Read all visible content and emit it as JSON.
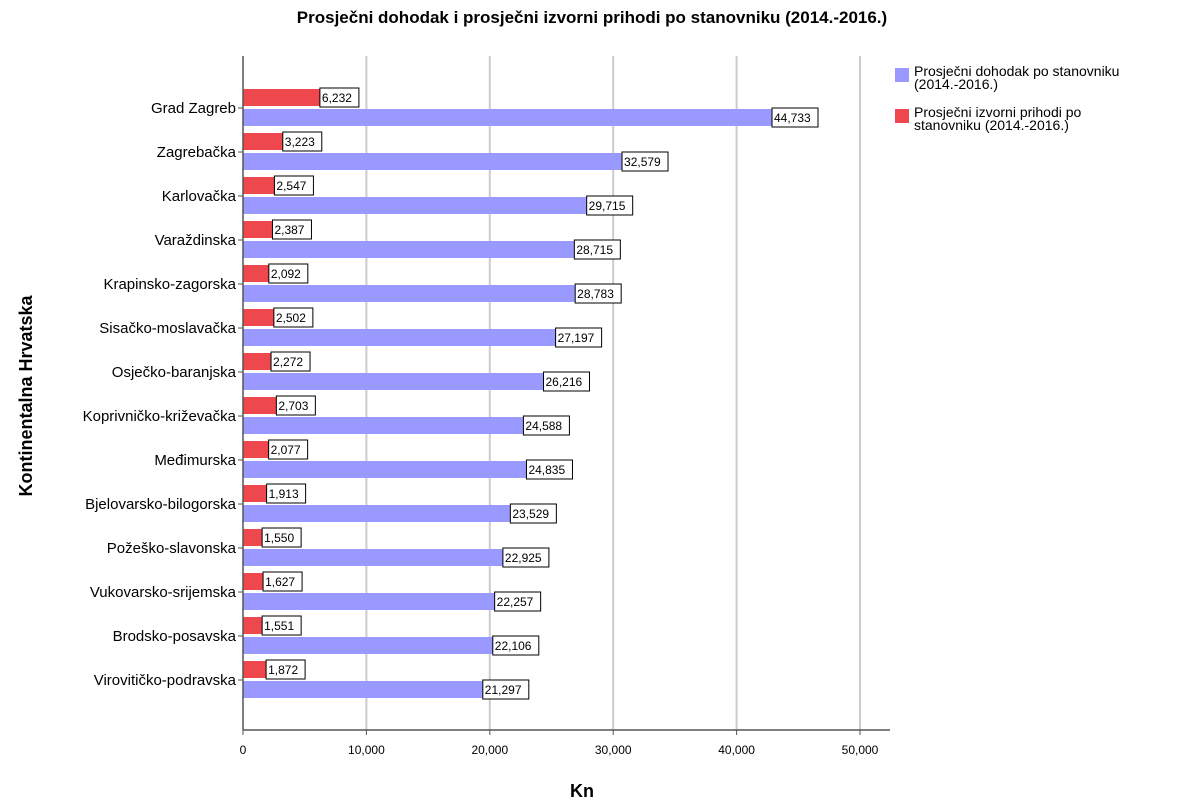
{
  "chart_data": {
    "type": "bar",
    "orientation": "horizontal",
    "title": "Prosječni dohodak i prosječni izvorni prihodi po stanovniku (2014.-2016.)",
    "xlabel": "Kn",
    "ylabel": "Kontinentalna Hrvatska",
    "xlim": [
      0,
      52000
    ],
    "xticks": [
      0,
      10000,
      20000,
      30000,
      40000,
      50000
    ],
    "xtick_labels": [
      "0",
      "10,000",
      "20,000",
      "30,000",
      "40,000",
      "50,000"
    ],
    "grid": "vertical",
    "legend_position": "top-right",
    "categories": [
      "Grad Zagreb",
      "Zagrebačka",
      "Karlovačka",
      "Varaždinska",
      "Krapinsko-zagorska",
      "Sisačko-moslavačka",
      "Osječko-baranjska",
      "Koprivničko-križevačka",
      "Međimurska",
      "Bjelovarsko-bilogorska",
      "Požeško-slavonska",
      "Vukovarsko-srijemska",
      "Brodsko-posavska",
      "Virovitičko-podravska"
    ],
    "series": [
      {
        "name": "Prosječni izvorni prihodi po stanovniku (2014.-2016.)",
        "legend_lines": [
          "Prosječni izvorni prihodi po",
          "stanovniku (2014.-2016.)"
        ],
        "color": "#ee474d",
        "values": [
          6232,
          3223,
          2547,
          2387,
          2092,
          2502,
          2272,
          2703,
          2077,
          1913,
          1550,
          1627,
          1551,
          1872
        ],
        "labels": [
          "6,232",
          "3,223",
          "2,547",
          "2,387",
          "2,092",
          "2,502",
          "2,272",
          "2,703",
          "2,077",
          "1,913",
          "1,550",
          "1,627",
          "1,551",
          "1,872"
        ]
      },
      {
        "name": "Prosječni dohodak po stanovniku (2014.-2016.)",
        "legend_lines": [
          "Prosječni dohodak po stanovniku",
          "(2014.-2016.)"
        ],
        "color": "#9999ff",
        "values": [
          44733,
          32579,
          29715,
          28715,
          28783,
          27197,
          26216,
          24588,
          24835,
          23529,
          22925,
          22257,
          22106,
          21297
        ],
        "labels": [
          "44,733",
          "32,579",
          "29,715",
          "28,715",
          "28,783",
          "27,197",
          "26,216",
          "24,588",
          "24,835",
          "23,529",
          "22,925",
          "22,257",
          "22,106",
          "21,297"
        ]
      }
    ]
  }
}
